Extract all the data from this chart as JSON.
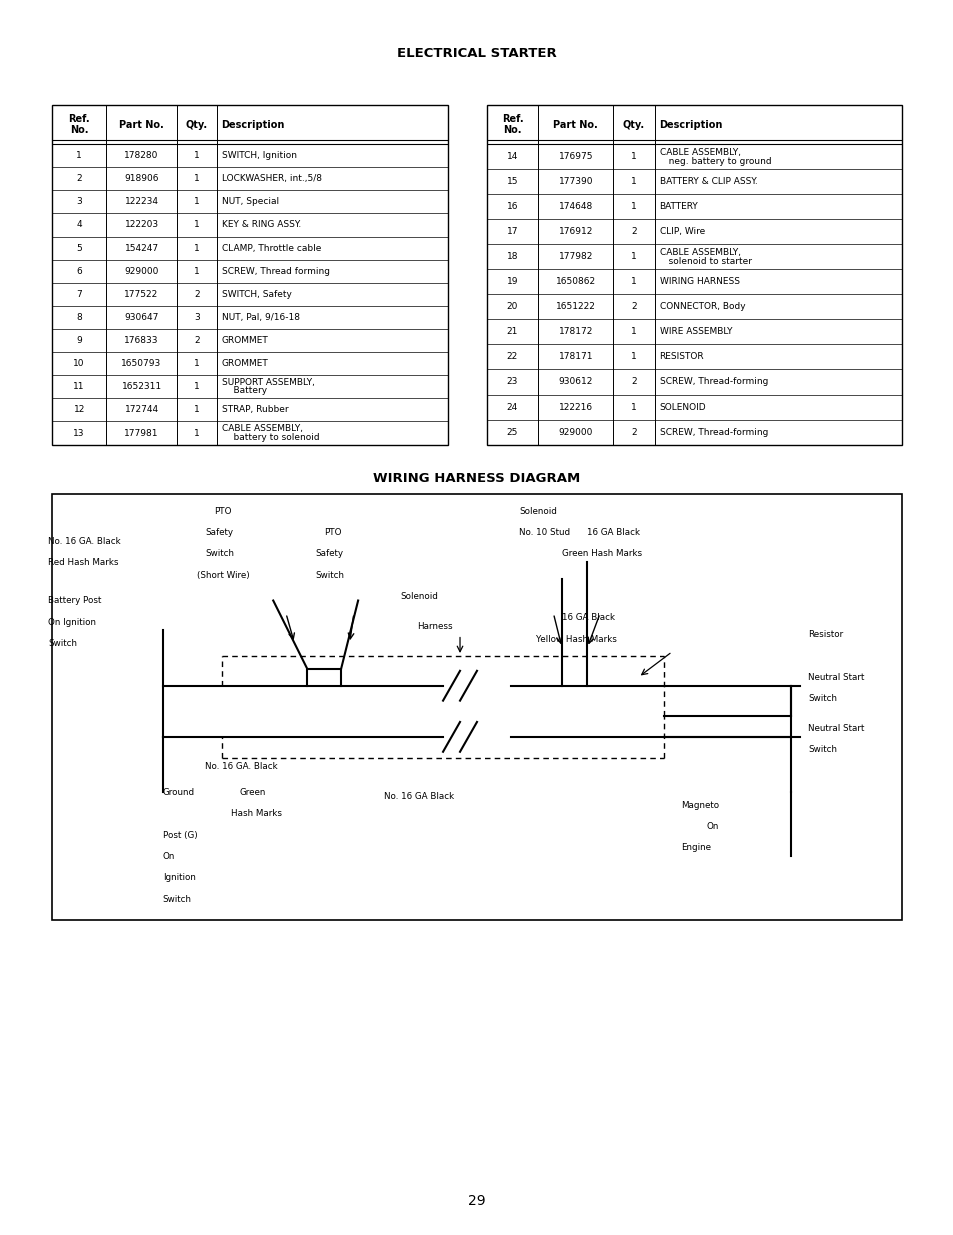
{
  "page_title": "ELECTRICAL STARTER",
  "diagram_title": "WIRING HARNESS DIAGRAM",
  "page_number": "29",
  "bg_color": "#ffffff",
  "table1": {
    "headers": [
      "Ref.\nNo.",
      "Part No.",
      "Qty.",
      "Description"
    ],
    "rows": [
      [
        "1",
        "178280",
        "1",
        "SWITCH, Ignition"
      ],
      [
        "2",
        "918906",
        "1",
        "LOCKWASHER, int.,5/8"
      ],
      [
        "3",
        "122234",
        "1",
        "NUT, Special"
      ],
      [
        "4",
        "122203",
        "1",
        "KEY & RING ASSY."
      ],
      [
        "5",
        "154247",
        "1",
        "CLAMP, Throttle cable"
      ],
      [
        "6",
        "929000",
        "1",
        "SCREW, Thread forming"
      ],
      [
        "7",
        "177522",
        "2",
        "SWITCH, Safety"
      ],
      [
        "8",
        "930647",
        "3",
        "NUT, Pal, 9/16-18"
      ],
      [
        "9",
        "176833",
        "2",
        "GROMMET"
      ],
      [
        "10",
        "1650793",
        "1",
        "GROMMET"
      ],
      [
        "11",
        "1652311",
        "1",
        "SUPPORT ASSEMBLY,\nBattery"
      ],
      [
        "12",
        "172744",
        "1",
        "STRAP, Rubber"
      ],
      [
        "13",
        "177981",
        "1",
        "CABLE ASSEMBLY,\nbattery to solenoid"
      ]
    ]
  },
  "table2": {
    "headers": [
      "Ref.\nNo.",
      "Part No.",
      "Qty.",
      "Description"
    ],
    "rows": [
      [
        "14",
        "176975",
        "1",
        "CABLE ASSEMBLY,\nneg. battery to ground"
      ],
      [
        "15",
        "177390",
        "1",
        "BATTERY & CLIP ASSY."
      ],
      [
        "16",
        "174648",
        "1",
        "BATTERY"
      ],
      [
        "17",
        "176912",
        "2",
        "CLIP, Wire"
      ],
      [
        "18",
        "177982",
        "1",
        "CABLE ASSEMBLY,\nsolenoid to starter"
      ],
      [
        "19",
        "1650862",
        "1",
        "WIRING HARNESS"
      ],
      [
        "20",
        "1651222",
        "2",
        "CONNECTOR, Body"
      ],
      [
        "21",
        "178172",
        "1",
        "WIRE ASSEMBLY"
      ],
      [
        "22",
        "178171",
        "1",
        "RESISTOR"
      ],
      [
        "23",
        "930612",
        "2",
        "SCREW, Thread-forming"
      ],
      [
        "24",
        "122216",
        "1",
        "SOLENOID"
      ],
      [
        "25",
        "929000",
        "2",
        "SCREW, Thread-forming"
      ]
    ]
  }
}
